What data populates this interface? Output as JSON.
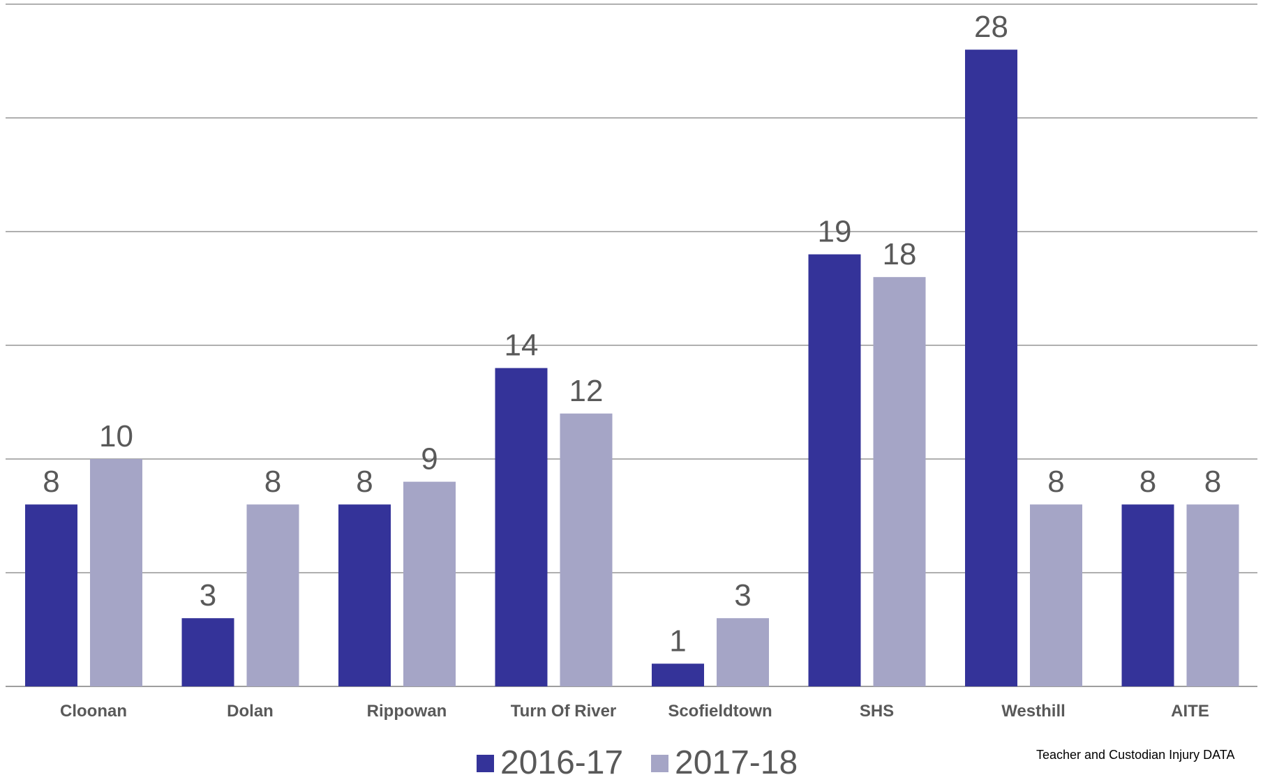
{
  "chart_data": {
    "type": "bar",
    "title": "",
    "xlabel": "",
    "ylabel": "",
    "categories": [
      "Cloonan",
      "Dolan",
      "Rippowan",
      "Turn Of River",
      "Scofieldtown",
      "SHS",
      "Westhill",
      "AITE"
    ],
    "series": [
      {
        "name": "2016-17",
        "color": "#343399",
        "values": [
          8,
          3,
          8,
          14,
          1,
          19,
          28,
          8
        ]
      },
      {
        "name": "2017-18",
        "color": "#A5A5C6",
        "values": [
          10,
          8,
          9,
          12,
          3,
          18,
          8,
          8
        ]
      }
    ],
    "ylim": [
      0,
      30
    ],
    "y_grid_step": 5,
    "grid": true,
    "legend_position": "bottom",
    "data_labels": true,
    "colors": {
      "grid": "#7F7F7F",
      "axis_text": "#595959"
    }
  },
  "footnote": "Teacher and Custodian Injury DATA"
}
